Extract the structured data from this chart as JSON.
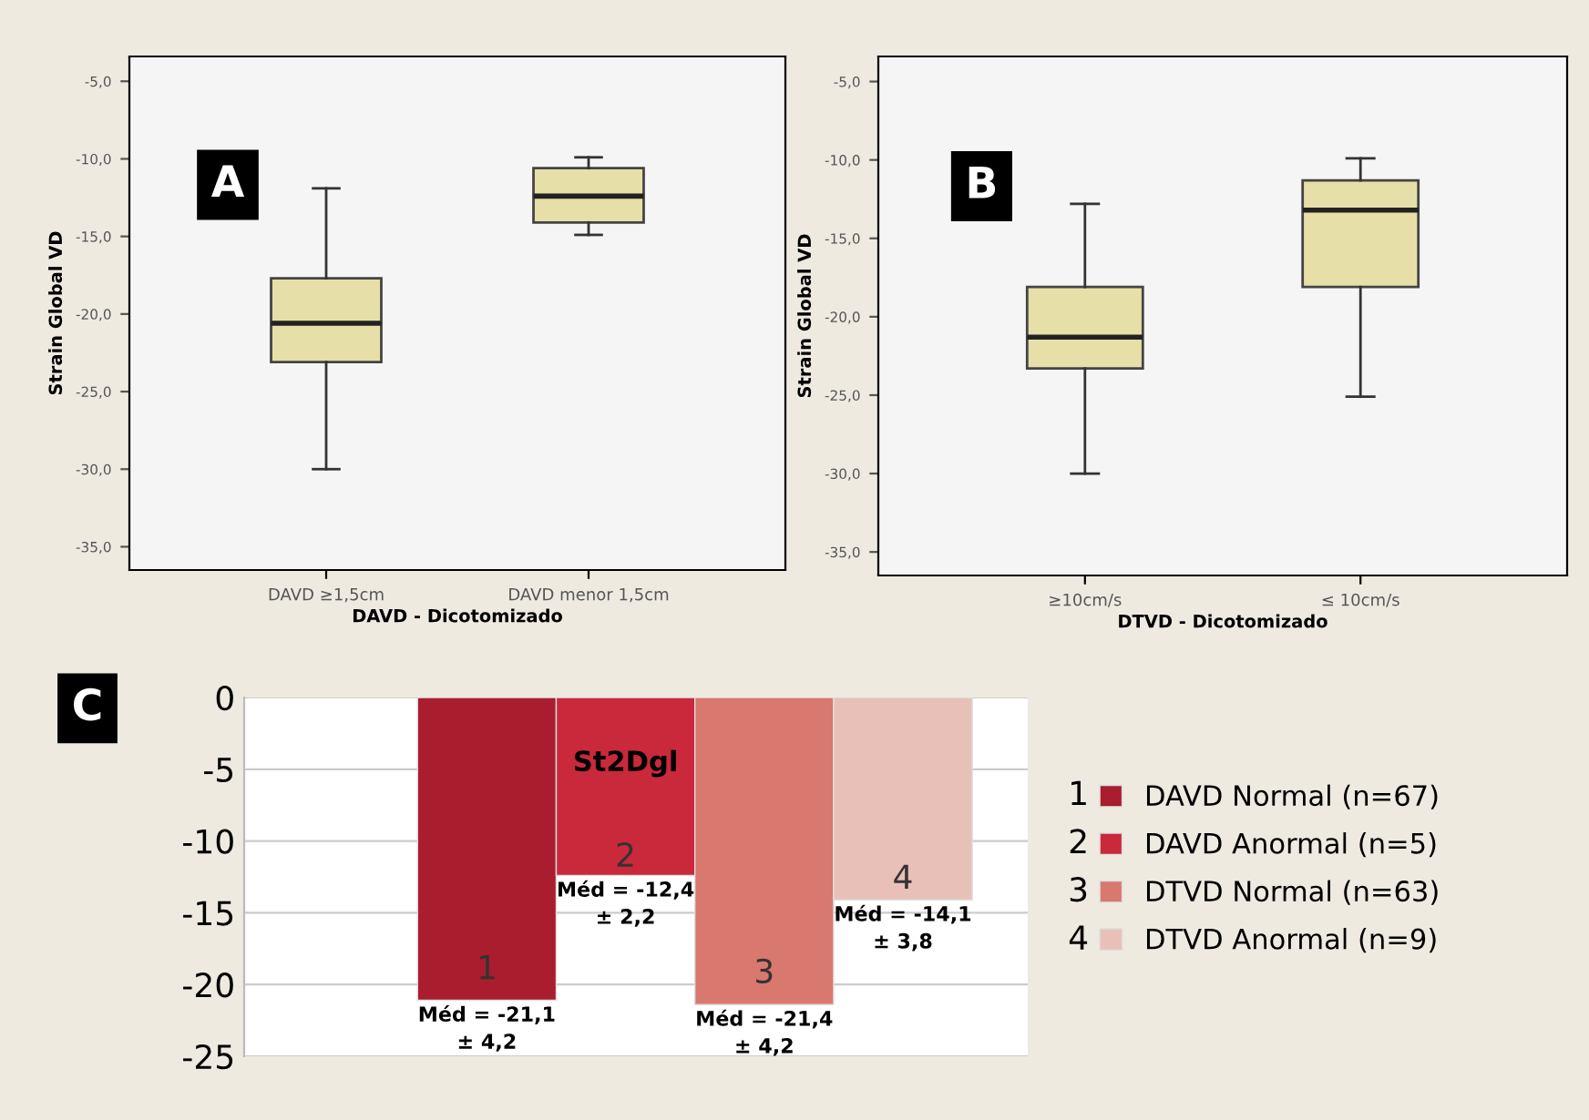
{
  "chart_data": [
    {
      "type": "box",
      "categories": [
        "DAVD ≥1,5cm",
        "DAVD menor 1,5cm"
      ],
      "xlabel": "DAVD - Dicotomizado",
      "ylabel": "Strain Global VD",
      "annotations": [
        "A"
      ],
      "color": "#e6dfa8",
      "boxes": [
        {
          "low": -30.0,
          "q1": -23.1,
          "median": -20.6,
          "q3": -17.7,
          "high": -11.9
        },
        {
          "low": -14.9,
          "q1": -14.1,
          "median": -12.4,
          "q3": -10.6,
          "high": -9.9
        }
      ],
      "ylim": [
        -36.5,
        -3.4
      ],
      "yticks": [
        {
          "value": -5,
          "label": "-5,0"
        },
        {
          "value": -10,
          "label": "-10,0"
        },
        {
          "value": -15,
          "label": "-15,0"
        },
        {
          "value": -20,
          "label": "-20,0"
        },
        {
          "value": -25,
          "label": "-25,0"
        },
        {
          "value": -30,
          "label": "-30,0"
        },
        {
          "value": -35,
          "label": "-35,0"
        }
      ],
      "grid": false
    },
    {
      "type": "box",
      "categories": [
        "≥10cm/s",
        "≤ 10cm/s"
      ],
      "xlabel": "DTVD - Dicotomizado",
      "ylabel": "Strain Global VD",
      "annotations": [
        "B"
      ],
      "color": "#e6dfa8",
      "boxes": [
        {
          "low": -30.0,
          "q1": -23.3,
          "median": -21.3,
          "q3": -18.1,
          "high": -12.8
        },
        {
          "low": -25.1,
          "q1": -18.1,
          "median": -13.2,
          "q3": -11.3,
          "high": -9.9
        }
      ],
      "ylim": [
        -36.5,
        -3.4
      ],
      "yticks": [
        {
          "value": -5,
          "label": "-5,0"
        },
        {
          "value": -10,
          "label": "-10,0"
        },
        {
          "value": -15,
          "label": "-15,0"
        },
        {
          "value": -20,
          "label": "-20,0"
        },
        {
          "value": -25,
          "label": "-25,0"
        },
        {
          "value": -30,
          "label": "-30,0"
        },
        {
          "value": -35,
          "label": "-35,0"
        }
      ],
      "grid": false
    },
    {
      "type": "bar",
      "title": "St2Dgl",
      "categories": [
        "1",
        "2",
        "3",
        "4"
      ],
      "annotations": [
        "C"
      ],
      "legend": "right",
      "grid": "y",
      "series": [
        {
          "name": "DAVD Normal (n=67)",
          "color": "#a91d2e",
          "values": [
            -21.1,
            null,
            null,
            null
          ],
          "value_labels": [
            "Méd = -21,1\n± 4,2",
            null,
            null,
            null
          ]
        },
        {
          "name": "DAVD Anormal (n=5)",
          "color": "#c9293b",
          "values": [
            null,
            -12.4,
            null,
            null
          ],
          "value_labels": [
            null,
            "Méd = -12,4\n± 2,2",
            null,
            null
          ]
        },
        {
          "name": "DTVD Normal (n=63)",
          "color": "#d9786f",
          "values": [
            null,
            null,
            -21.4,
            null
          ],
          "value_labels": [
            null,
            null,
            "Méd = -21,4\n± 4,2",
            null
          ]
        },
        {
          "name": "DTVD Anormal (n=9)",
          "color": "#e9c0b8",
          "values": [
            null,
            null,
            null,
            -14.1
          ],
          "value_labels": [
            null,
            null,
            null,
            "Méd = -14,1\n± 3,8"
          ]
        }
      ],
      "ylim": [
        -25,
        0
      ],
      "yticks": [
        0,
        -5,
        -10,
        -15,
        -20,
        -25
      ]
    }
  ]
}
